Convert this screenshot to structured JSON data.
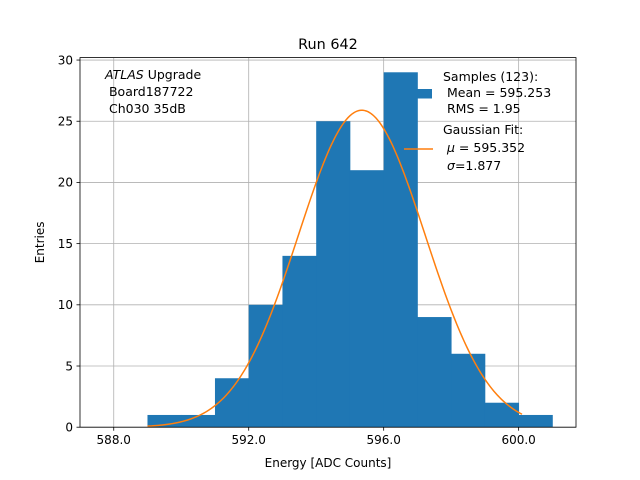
{
  "chart_data": {
    "type": "bar",
    "title": "Run 642",
    "xlabel": "Energy [ADC Counts]",
    "ylabel": "Entries",
    "xlim": [
      587.0,
      601.7
    ],
    "ylim": [
      0,
      30.2
    ],
    "grid": true,
    "histogram": {
      "bin_edges": [
        589,
        590,
        591,
        592,
        593,
        594,
        595,
        596,
        597,
        598,
        599,
        600,
        601
      ],
      "values": [
        1,
        1,
        4,
        10,
        14,
        25,
        21,
        29,
        9,
        6,
        2,
        1
      ],
      "color": "#1f77b4"
    },
    "fit": {
      "mu": 595.352,
      "sigma": 1.877,
      "amplitude": 25.9,
      "x_range": [
        589.0,
        600.1
      ],
      "color": "#ff7f0e"
    },
    "x_ticks": [
      {
        "value": 588.0,
        "label": "588.0"
      },
      {
        "value": 592.0,
        "label": "592.0"
      },
      {
        "value": 596.0,
        "label": "596.0"
      },
      {
        "value": 600.0,
        "label": "600.0"
      }
    ],
    "y_ticks": [
      {
        "value": 0,
        "label": "0"
      },
      {
        "value": 5,
        "label": "5"
      },
      {
        "value": 10,
        "label": "10"
      },
      {
        "value": 15,
        "label": "15"
      },
      {
        "value": 20,
        "label": "20"
      },
      {
        "value": 25,
        "label": "25"
      },
      {
        "value": 30,
        "label": "30"
      }
    ],
    "annotation": {
      "atlas_label": "ATLAS",
      "upgrade_label": " Upgrade",
      "board_label": " Board187722",
      "channel_label": " Ch030 35dB"
    },
    "legend": {
      "placement": "top-right",
      "samples_title": "Samples (123):",
      "samples_mean": " Mean = 595.253",
      "samples_rms": " RMS = 1.95",
      "fit_title": "Gaussian Fit:",
      "fit_mu_symbol": "μ",
      "fit_mu_value": " = 595.352",
      "fit_sigma_symbol": "σ",
      "fit_sigma_value": "=1.877"
    }
  }
}
